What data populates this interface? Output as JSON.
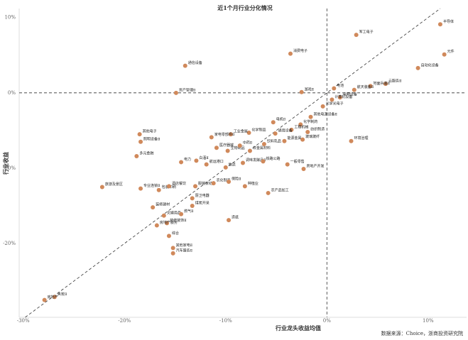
{
  "chart_data": {
    "type": "scatter",
    "title": "近1个月行业分化情况",
    "x_label": "行业龙头收益均值",
    "y_label": "行业收益",
    "source": "数据来源：Choice，浙商投资研究院",
    "color": "#d0895b",
    "xlim": [
      -30.4,
      13.8
    ],
    "ylim": [
      -29.8,
      11.2
    ],
    "xticks": [
      {
        "value": -30,
        "label": "-30%"
      },
      {
        "value": -20,
        "label": "-20%"
      },
      {
        "value": -10,
        "label": "-10%"
      },
      {
        "value": 0,
        "label": "0%"
      },
      {
        "value": 10,
        "label": "10%"
      }
    ],
    "yticks": [
      {
        "value": -20,
        "label": "-20%"
      },
      {
        "value": -10,
        "label": "-10%"
      },
      {
        "value": 0,
        "label": "0%"
      },
      {
        "value": 10,
        "label": "10%"
      }
    ],
    "labels": [
      "半导体",
      "元件",
      "军工电子",
      "消费电子",
      "通信设备",
      "资产管理Ⅱ",
      "自动化设备",
      "云服务Ⅱ",
      "地面兵装Ⅱ",
      "航天装备Ⅱ",
      "电池",
      "游戏Ⅱ",
      "电网设备",
      "计算机设备",
      "光学光电子",
      "其他电源设备Ⅱ",
      "化学制药",
      "工程机械",
      "电机Ⅱ",
      "通用设备",
      "化学制品",
      "工业金属",
      "家电零部件Ⅱ",
      "医疗器械",
      "生物制品",
      "中药Ⅱ",
      "非金属材料",
      "饮料乳品",
      "能源金属",
      "玻璃玻纤",
      "纺织制造",
      "环境治理",
      "其他电子",
      "照明设备Ⅱ",
      "多元金融",
      "白酒Ⅱ",
      "电力",
      "航运港口",
      "物流",
      "调味发酵品Ⅱ",
      "铁路公路",
      "一般零售",
      "房地产开发",
      "旅游及景区",
      "专业连锁Ⅱ",
      "包装印刷",
      "酒店餐饮",
      "服装家纺",
      "农化制品",
      "保险Ⅱ",
      "种植业",
      "厨卫电器",
      "农产品加工",
      "装修建材",
      "文娱用品",
      "装修装饰Ⅱ",
      "燃气Ⅱ",
      "煤炭开采",
      "造纸",
      "房地产服务",
      "综合",
      "其他家电Ⅱ",
      "汽车服务Ⅱ",
      "焦炭Ⅱ",
      "房地产"
    ],
    "x": [
      11.2,
      11.6,
      2.9,
      -3.6,
      -14.0,
      -14.9,
      9.0,
      5.8,
      4.3,
      2.7,
      0.7,
      -2.5,
      1.3,
      0.5,
      -0.4,
      -1.6,
      -2.6,
      -3.5,
      -5.3,
      -5.1,
      -7.7,
      -9.5,
      -11.4,
      -10.9,
      -9.8,
      -8.6,
      -7.6,
      -6.2,
      -4.2,
      -2.4,
      -1.9,
      2.4,
      -18.5,
      -18.4,
      -18.8,
      -12.9,
      -14.4,
      -11.9,
      -10.0,
      -8.3,
      -6.3,
      -3.9,
      -2.3,
      -22.2,
      -18.4,
      -16.6,
      -15.6,
      -13.0,
      -11.2,
      -9.7,
      -8.1,
      -13.3,
      -5.8,
      -17.2,
      -16.1,
      -15.8,
      -14.4,
      -13.3,
      -9.7,
      -16.8,
      -15.6,
      -15.2,
      -15.2,
      -26.9,
      -27.9
    ],
    "values": [
      9.1,
      5.1,
      7.7,
      5.2,
      3.6,
      0.0,
      3.3,
      1.2,
      0.9,
      0.4,
      0.6,
      0.1,
      -0.6,
      -0.9,
      -1.8,
      -3.2,
      -4.2,
      -4.9,
      -3.9,
      -5.4,
      -5.3,
      -5.5,
      -5.9,
      -7.3,
      -7.7,
      -7.0,
      -7.7,
      -6.8,
      -6.4,
      -6.2,
      -5.2,
      -6.4,
      -5.5,
      -6.5,
      -8.4,
      -9.0,
      -9.2,
      -9.5,
      -9.9,
      -9.3,
      -9.1,
      -9.5,
      -10.1,
      -12.5,
      -12.7,
      -12.9,
      -12.4,
      -12.4,
      -12.0,
      -11.8,
      -12.4,
      -14.0,
      -13.3,
      -15.2,
      -16.3,
      -17.3,
      -16.1,
      -15.0,
      -16.9,
      -17.6,
      -19.0,
      -20.6,
      -21.3,
      -27.1,
      -27.5
    ]
  }
}
